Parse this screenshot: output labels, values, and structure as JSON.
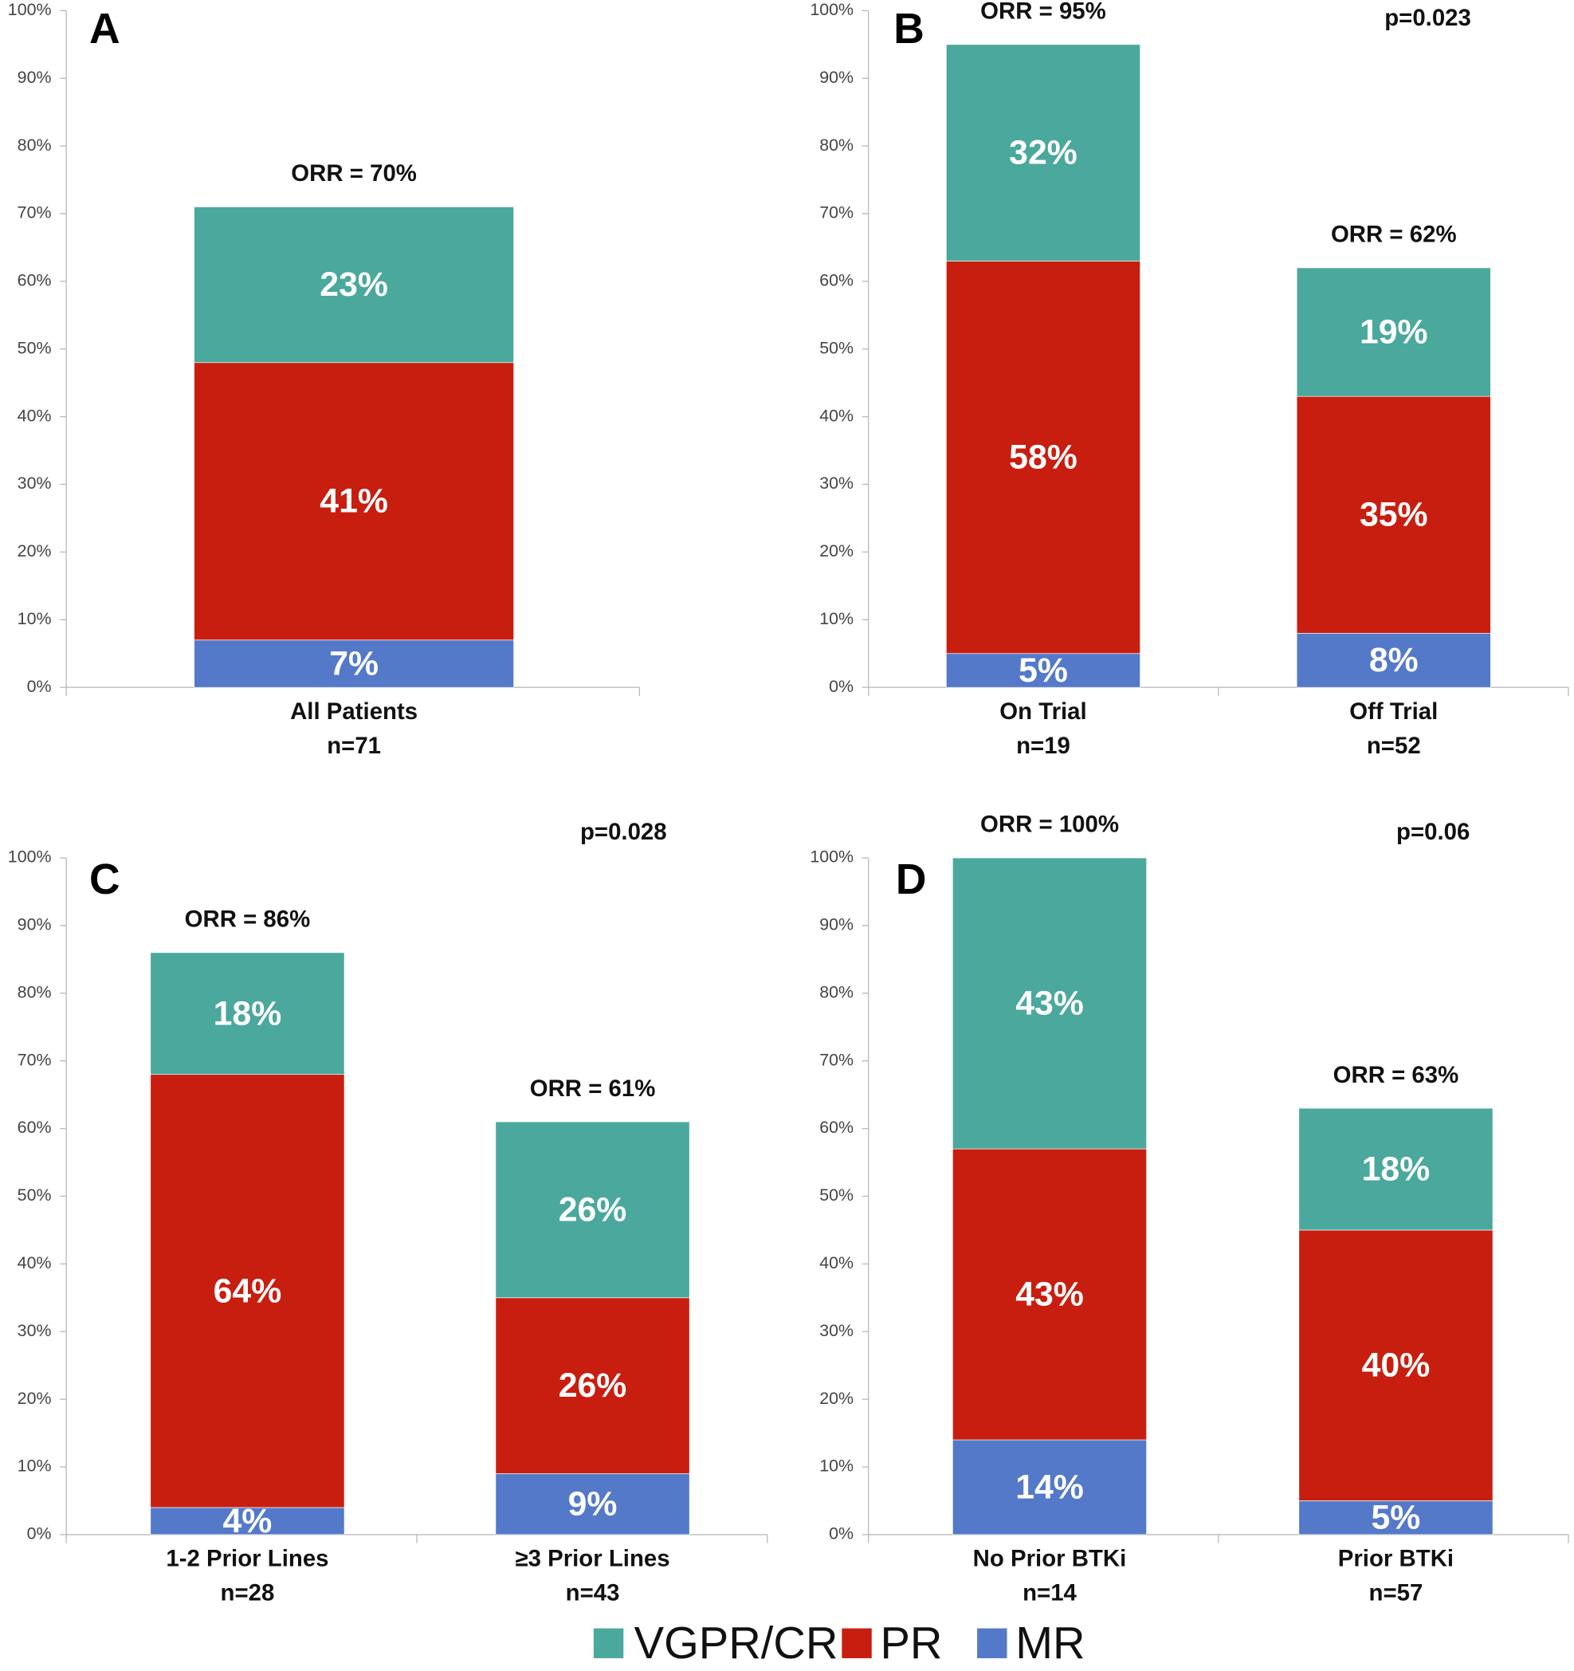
{
  "chart_data": [
    {
      "type": "stacked_bar",
      "panel": "A",
      "categories": [
        "All Patients"
      ],
      "sample_sizes": [
        "n=71"
      ],
      "orr_labels": [
        "ORR = 70%"
      ],
      "ylim": [
        0,
        100
      ],
      "yticks": [
        {
          "value": 0,
          "label": "0%"
        },
        {
          "value": 10,
          "label": "10%"
        },
        {
          "value": 20,
          "label": "20%"
        },
        {
          "value": 30,
          "label": "30%"
        },
        {
          "value": 40,
          "label": "40%"
        },
        {
          "value": 50,
          "label": "50%"
        },
        {
          "value": 60,
          "label": "60%"
        },
        {
          "value": 70,
          "label": "70%"
        },
        {
          "value": 80,
          "label": "80%"
        },
        {
          "value": 90,
          "label": "90%"
        },
        {
          "value": 100,
          "label": "100%"
        }
      ],
      "series": [
        {
          "name": "MR",
          "color": "#5479c9",
          "values": [
            7
          ],
          "value_labels": [
            "7%"
          ]
        },
        {
          "name": "PR",
          "color": "#c81e10",
          "values": [
            41
          ],
          "value_labels": [
            "41%"
          ]
        },
        {
          "name": "VGPR/CR",
          "color": "#4aa89c",
          "values": [
            23
          ],
          "value_labels": [
            "23%"
          ]
        }
      ]
    },
    {
      "type": "stacked_bar",
      "panel": "B",
      "annotation": "p=0.023",
      "categories": [
        "On Trial",
        "Off Trial"
      ],
      "sample_sizes": [
        "n=19",
        "n=52"
      ],
      "orr_labels": [
        "ORR = 95%",
        "ORR = 62%"
      ],
      "ylim": [
        0,
        100
      ],
      "yticks": [
        {
          "value": 0,
          "label": "0%"
        },
        {
          "value": 10,
          "label": "10%"
        },
        {
          "value": 20,
          "label": "20%"
        },
        {
          "value": 30,
          "label": "30%"
        },
        {
          "value": 40,
          "label": "40%"
        },
        {
          "value": 50,
          "label": "50%"
        },
        {
          "value": 60,
          "label": "60%"
        },
        {
          "value": 70,
          "label": "70%"
        },
        {
          "value": 80,
          "label": "80%"
        },
        {
          "value": 90,
          "label": "90%"
        },
        {
          "value": 100,
          "label": "100%"
        }
      ],
      "series": [
        {
          "name": "MR",
          "color": "#5479c9",
          "values": [
            5,
            8
          ],
          "value_labels": [
            "5%",
            "8%"
          ]
        },
        {
          "name": "PR",
          "color": "#c81e10",
          "values": [
            58,
            35
          ],
          "value_labels": [
            "58%",
            "35%"
          ]
        },
        {
          "name": "VGPR/CR",
          "color": "#4aa89c",
          "values": [
            32,
            19
          ],
          "value_labels": [
            "32%",
            "19%"
          ]
        }
      ]
    },
    {
      "type": "stacked_bar",
      "panel": "C",
      "annotation": "p=0.028",
      "categories": [
        "1-2 Prior Lines",
        "≥3 Prior Lines"
      ],
      "sample_sizes": [
        "n=28",
        "n=43"
      ],
      "orr_labels": [
        "ORR = 86%",
        "ORR = 61%"
      ],
      "ylim": [
        0,
        100
      ],
      "yticks": [
        {
          "value": 0,
          "label": "0%"
        },
        {
          "value": 10,
          "label": "10%"
        },
        {
          "value": 20,
          "label": "20%"
        },
        {
          "value": 30,
          "label": "30%"
        },
        {
          "value": 40,
          "label": "40%"
        },
        {
          "value": 50,
          "label": "50%"
        },
        {
          "value": 60,
          "label": "60%"
        },
        {
          "value": 70,
          "label": "70%"
        },
        {
          "value": 80,
          "label": "80%"
        },
        {
          "value": 90,
          "label": "90%"
        },
        {
          "value": 100,
          "label": "100%"
        }
      ],
      "series": [
        {
          "name": "MR",
          "color": "#5479c9",
          "values": [
            4,
            9
          ],
          "value_labels": [
            "4%",
            "9%"
          ]
        },
        {
          "name": "PR",
          "color": "#c81e10",
          "values": [
            64,
            26
          ],
          "value_labels": [
            "64%",
            "26%"
          ]
        },
        {
          "name": "VGPR/CR",
          "color": "#4aa89c",
          "values": [
            18,
            26
          ],
          "value_labels": [
            "18%",
            "26%"
          ]
        }
      ]
    },
    {
      "type": "stacked_bar",
      "panel": "D",
      "annotation": "p=0.06",
      "categories": [
        "No Prior BTKi",
        "Prior BTKi"
      ],
      "sample_sizes": [
        "n=14",
        "n=57"
      ],
      "orr_labels": [
        "ORR = 100%",
        "ORR = 63%"
      ],
      "ylim": [
        0,
        100
      ],
      "yticks": [
        {
          "value": 0,
          "label": "0%"
        },
        {
          "value": 10,
          "label": "10%"
        },
        {
          "value": 20,
          "label": "20%"
        },
        {
          "value": 30,
          "label": "30%"
        },
        {
          "value": 40,
          "label": "40%"
        },
        {
          "value": 50,
          "label": "50%"
        },
        {
          "value": 60,
          "label": "60%"
        },
        {
          "value": 70,
          "label": "70%"
        },
        {
          "value": 80,
          "label": "80%"
        },
        {
          "value": 90,
          "label": "90%"
        },
        {
          "value": 100,
          "label": "100%"
        }
      ],
      "series": [
        {
          "name": "MR",
          "color": "#5479c9",
          "values": [
            14,
            5
          ],
          "value_labels": [
            "14%",
            "5%"
          ]
        },
        {
          "name": "PR",
          "color": "#c81e10",
          "values": [
            43,
            40
          ],
          "value_labels": [
            "43%",
            "40%"
          ]
        },
        {
          "name": "VGPR/CR",
          "color": "#4aa89c",
          "values": [
            43,
            18
          ],
          "value_labels": [
            "43%",
            "18%"
          ]
        }
      ]
    }
  ]
}
